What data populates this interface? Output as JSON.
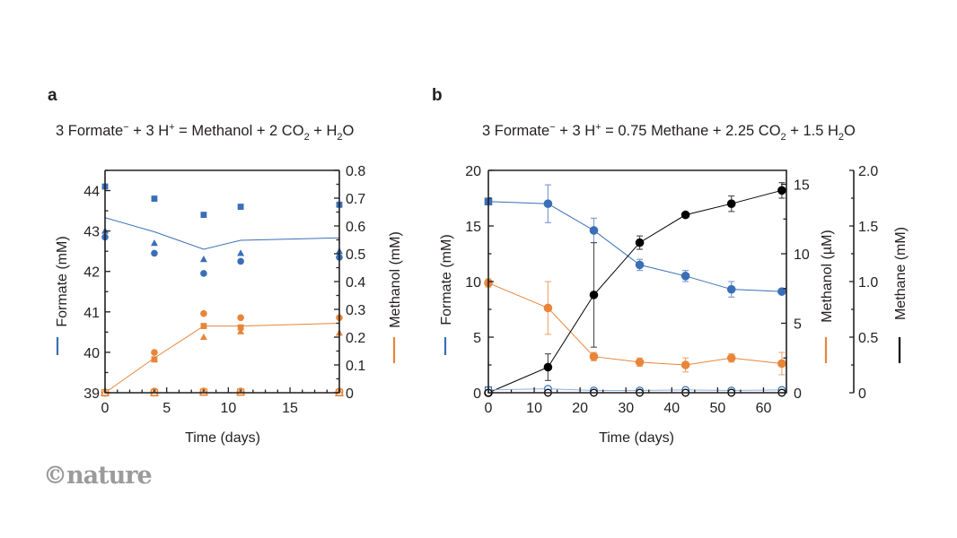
{
  "logo": "©nature",
  "colors": {
    "formate": "#3a6fb7",
    "methanol": "#e8853a",
    "methane": "#000000",
    "axis": "#231f20"
  },
  "chart_data": [
    {
      "panel": "a",
      "type": "scatter",
      "title_parts": [
        "3 Formate",
        "−",
        " + 3 H",
        "+",
        " = Methanol + 2 CO",
        "2",
        " + H",
        "2",
        "O"
      ],
      "xlabel": "Time (days)",
      "ylabel_left": "Formate (mM)",
      "ylabel_right": "Methanol (mM)",
      "xlim": [
        0,
        19
      ],
      "ylim_left": [
        39,
        44.5
      ],
      "ylim_right": [
        0,
        0.8
      ],
      "xticks": [
        0,
        5,
        10,
        15
      ],
      "yticks_left": [
        39,
        40,
        41,
        42,
        43,
        44
      ],
      "yticks_right": [
        0,
        0.1,
        0.2,
        0.3,
        0.4,
        0.5,
        0.6,
        0.7,
        0.8
      ],
      "yticks_right_labels": [
        "0",
        "0.1",
        "0.2",
        "0.3",
        "0.4",
        "0.5",
        "0.6",
        "0.7",
        "0.8"
      ],
      "x": [
        0,
        4,
        8,
        11,
        19
      ],
      "series": [
        {
          "name": "Formate replicate (square)",
          "axis": "left",
          "marker": "square",
          "filled": true,
          "color": "formate",
          "values": [
            44.1,
            43.8,
            43.4,
            43.6,
            43.65
          ]
        },
        {
          "name": "Formate replicate (triangle)",
          "axis": "left",
          "marker": "triangle",
          "filled": true,
          "color": "formate",
          "values": [
            43.0,
            42.7,
            42.3,
            42.45,
            42.5
          ]
        },
        {
          "name": "Formate replicate (circle)",
          "axis": "left",
          "marker": "circle",
          "filled": true,
          "color": "formate",
          "values": [
            42.85,
            42.45,
            41.95,
            42.25,
            42.35
          ]
        },
        {
          "name": "Formate mean",
          "axis": "left",
          "marker": "none",
          "line": true,
          "color": "formate",
          "values": [
            43.33,
            42.98,
            42.55,
            42.77,
            42.83
          ]
        },
        {
          "name": "Methanol replicate (circle)",
          "axis": "right",
          "marker": "circle",
          "filled": true,
          "color": "methanol",
          "values": [
            0.0,
            0.145,
            0.285,
            0.27,
            0.27
          ]
        },
        {
          "name": "Methanol replicate (square)",
          "axis": "right",
          "marker": "square",
          "filled": true,
          "color": "methanol",
          "values": [
            0.0,
            0.12,
            0.24,
            0.235,
            null
          ]
        },
        {
          "name": "Methanol replicate (triangle)",
          "axis": "right",
          "marker": "triangle",
          "filled": true,
          "color": "methanol",
          "values": [
            0.0,
            0.12,
            0.2,
            0.22,
            0.215
          ]
        },
        {
          "name": "Methanol mean",
          "axis": "right",
          "marker": "none",
          "line": true,
          "color": "methanol",
          "values": [
            0.0,
            0.125,
            0.24,
            0.24,
            0.25
          ]
        },
        {
          "name": "Methanol control (open circle)",
          "axis": "right",
          "marker": "circle",
          "filled": false,
          "color": "methanol",
          "values": [
            0.0,
            0.004,
            0.004,
            0.004,
            0.004
          ]
        },
        {
          "name": "Methanol control (open square)",
          "axis": "right",
          "marker": "square",
          "filled": false,
          "color": "methanol",
          "values": [
            0.0,
            0.0,
            0.002,
            0.002,
            0.0
          ]
        },
        {
          "name": "Methanol control (open triangle)",
          "axis": "right",
          "marker": "triangle",
          "filled": false,
          "color": "methanol",
          "values": [
            0.0,
            0.0,
            0.002,
            0.002,
            0.0
          ]
        }
      ]
    },
    {
      "panel": "b",
      "type": "line",
      "title_parts": [
        "3 Formate",
        "−",
        " + 3 H",
        "+",
        " = 0.75 Methane + 2.25 CO",
        "2",
        " + 1.5 H",
        "2",
        "O"
      ],
      "xlabel": "Time (days)",
      "ylabel_left": "Formate (mM)",
      "ylabel_right": "Methanol (µM)",
      "ylabel_right2": "Methane (mM)",
      "xlim": [
        0,
        65
      ],
      "ylim_left": [
        0,
        20
      ],
      "ylim_right": [
        0,
        16
      ],
      "ylim_right2": [
        0,
        2.0
      ],
      "xticks": [
        0,
        10,
        20,
        30,
        40,
        50,
        60
      ],
      "yticks_left": [
        0,
        5,
        10,
        15,
        20
      ],
      "yticks_right": [
        0,
        5,
        10,
        15
      ],
      "yticks_right2": [
        0,
        0.5,
        1.0,
        1.5,
        2.0
      ],
      "yticks_right2_labels": [
        "0",
        "0.5",
        "1.0",
        "1.5",
        "2.0"
      ],
      "x": [
        0,
        13,
        23,
        33,
        43,
        53,
        64
      ],
      "series": [
        {
          "name": "Formate",
          "axis": "left",
          "marker": "circle",
          "first_marker": "square",
          "filled": true,
          "color": "formate",
          "values": [
            17.2,
            17.0,
            14.6,
            11.5,
            10.5,
            9.3,
            9.1
          ],
          "errors": [
            0.0,
            1.7,
            1.1,
            0.5,
            0.5,
            0.7,
            0.0
          ]
        },
        {
          "name": "Methanol",
          "axis": "right",
          "marker": "circle",
          "filled": true,
          "color": "methanol",
          "values": [
            7.9,
            6.1,
            2.6,
            2.2,
            2.0,
            2.5,
            2.1
          ],
          "errors": [
            0.3,
            1.9,
            0.3,
            0.3,
            0.5,
            0.3,
            0.8
          ]
        },
        {
          "name": "Methane",
          "axis": "right2",
          "marker": "circle",
          "filled": true,
          "color": "methane",
          "values": [
            0.0,
            0.23,
            0.88,
            1.35,
            1.6,
            1.7,
            1.82
          ],
          "errors": [
            0.0,
            0.12,
            0.47,
            0.06,
            0.02,
            0.07,
            0.07
          ]
        },
        {
          "name": "Formate control (open)",
          "axis": "left",
          "marker": "circle",
          "first_marker": "square",
          "filled": false,
          "color": "formate",
          "values": [
            0.25,
            0.35,
            0.2,
            0.2,
            0.25,
            0.2,
            0.25
          ],
          "errors": [
            0,
            0.2,
            0,
            0,
            0,
            0,
            0
          ]
        },
        {
          "name": "Methane control (open)",
          "axis": "right2",
          "marker": "circle",
          "filled": false,
          "color": "methane",
          "values": [
            0,
            0,
            0,
            0,
            0,
            0,
            0
          ],
          "errors": [
            0,
            0,
            0,
            0,
            0,
            0,
            0
          ]
        }
      ]
    }
  ]
}
